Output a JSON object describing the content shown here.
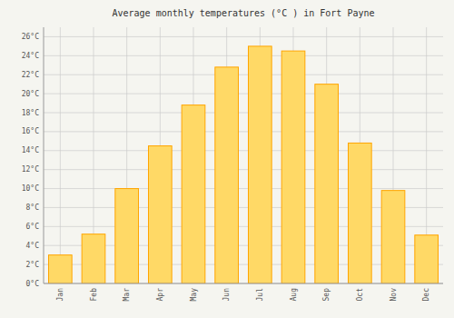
{
  "chart_data": {
    "type": "bar",
    "title": "Average monthly temperatures (°C ) in Fort Payne",
    "categories": [
      "Jan",
      "Feb",
      "Mar",
      "Apr",
      "May",
      "Jun",
      "Jul",
      "Aug",
      "Sep",
      "Oct",
      "Nov",
      "Dec"
    ],
    "values": [
      3,
      5.2,
      10,
      14.5,
      18.8,
      22.8,
      25,
      24.5,
      21,
      14.8,
      9.8,
      5.1
    ],
    "color": "#FFD966",
    "ylim": [
      0,
      27
    ],
    "yticks": [
      {
        "value": 0,
        "label": "0°C"
      },
      {
        "value": 2,
        "label": "2°C"
      },
      {
        "value": 4,
        "label": "4°C"
      },
      {
        "value": 6,
        "label": "6°C"
      },
      {
        "value": 8,
        "label": "8°C"
      },
      {
        "value": 10,
        "label": "10°C"
      },
      {
        "value": 12,
        "label": "12°C"
      },
      {
        "value": 14,
        "label": "14°C"
      },
      {
        "value": 16,
        "label": "16°C"
      },
      {
        "value": 18,
        "label": "18°C"
      },
      {
        "value": 20,
        "label": "20°C"
      },
      {
        "value": 22,
        "label": "22°C"
      },
      {
        "value": 24,
        "label": "24°C"
      },
      {
        "value": 26,
        "label": "26°C"
      }
    ],
    "grid": true
  }
}
